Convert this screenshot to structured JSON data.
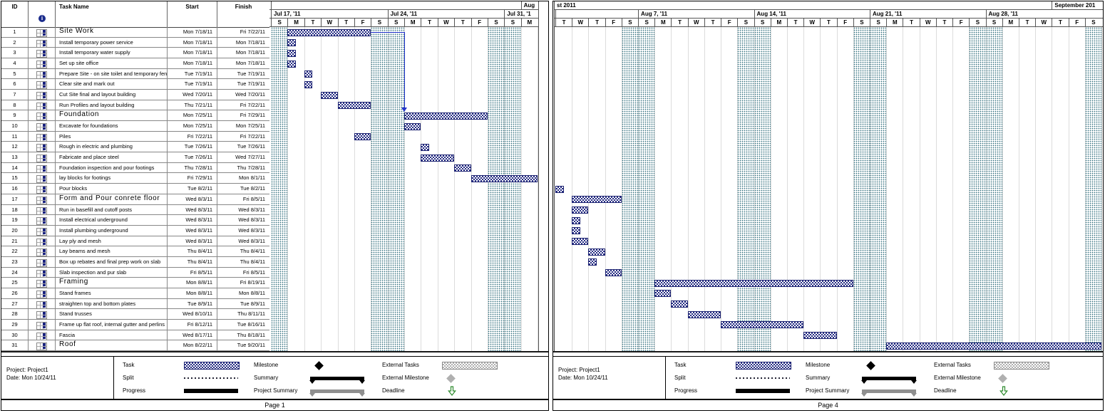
{
  "project": {
    "line1": "Project: Project1",
    "line2": "Date: Mon 10/24/11"
  },
  "table": {
    "headers": {
      "id": "ID",
      "task_name": "Task Name",
      "start": "Start",
      "finish": "Finish"
    }
  },
  "icons": {
    "info_glyph": "i",
    "task_mode_icon": "mini-gantt-table"
  },
  "tasks": [
    {
      "id": 1,
      "name": "Site Work",
      "start": "Mon 7/18/11",
      "finish": "Fri 7/22/11",
      "summary": true,
      "bar": {
        "page": 1,
        "day": 1,
        "dur": 5
      }
    },
    {
      "id": 2,
      "name": "Install temporary power service",
      "start": "Mon 7/18/11",
      "finish": "Mon 7/18/11",
      "summary": false,
      "bar": {
        "page": 1,
        "day": 1,
        "dur": 0.5
      }
    },
    {
      "id": 3,
      "name": "Install temporary water supply",
      "start": "Mon 7/18/11",
      "finish": "Mon 7/18/11",
      "summary": false,
      "bar": {
        "page": 1,
        "day": 1,
        "dur": 0.5
      }
    },
    {
      "id": 4,
      "name": "Set up site office",
      "start": "Mon 7/18/11",
      "finish": "Mon 7/18/11",
      "summary": false,
      "bar": {
        "page": 1,
        "day": 1,
        "dur": 0.5
      }
    },
    {
      "id": 5,
      "name": "Prepare Site - on site toilet and temporary fenc",
      "start": "Tue 7/19/11",
      "finish": "Tue 7/19/11",
      "summary": false,
      "bar": {
        "page": 1,
        "day": 2,
        "dur": 0.5
      }
    },
    {
      "id": 6,
      "name": "Clear site and mark out",
      "start": "Tue 7/19/11",
      "finish": "Tue 7/19/11",
      "summary": false,
      "bar": {
        "page": 1,
        "day": 2,
        "dur": 0.5
      }
    },
    {
      "id": 7,
      "name": "Cut Site final and layout building",
      "start": "Wed 7/20/11",
      "finish": "Wed 7/20/11",
      "summary": false,
      "bar": {
        "page": 1,
        "day": 3,
        "dur": 1
      }
    },
    {
      "id": 8,
      "name": "Run Profiles and layout building",
      "start": "Thu 7/21/11",
      "finish": "Fri 7/22/11",
      "summary": false,
      "bar": {
        "page": 1,
        "day": 4,
        "dur": 2
      }
    },
    {
      "id": 9,
      "name": "Foundation",
      "start": "Mon 7/25/11",
      "finish": "Fri 7/29/11",
      "summary": true,
      "bar": {
        "page": 1,
        "day": 8,
        "dur": 5
      }
    },
    {
      "id": 10,
      "name": "Excavate for foundations",
      "start": "Mon 7/25/11",
      "finish": "Mon 7/25/11",
      "summary": false,
      "bar": {
        "page": 1,
        "day": 8,
        "dur": 1
      }
    },
    {
      "id": 11,
      "name": "Piles",
      "start": "Fri 7/22/11",
      "finish": "Fri 7/22/11",
      "summary": false,
      "bar": {
        "page": 1,
        "day": 5,
        "dur": 1
      }
    },
    {
      "id": 12,
      "name": "Rough in electric and plumbing",
      "start": "Tue 7/26/11",
      "finish": "Tue 7/26/11",
      "summary": false,
      "bar": {
        "page": 1,
        "day": 9,
        "dur": 0.5
      }
    },
    {
      "id": 13,
      "name": "Fabricate and place steel",
      "start": "Tue 7/26/11",
      "finish": "Wed 7/27/11",
      "summary": false,
      "bar": {
        "page": 1,
        "day": 9,
        "dur": 2
      }
    },
    {
      "id": 14,
      "name": "Foundation inspection and pour footings",
      "start": "Thu 7/28/11",
      "finish": "Thu 7/28/11",
      "summary": false,
      "bar": {
        "page": 1,
        "day": 11,
        "dur": 1
      }
    },
    {
      "id": 15,
      "name": "lay blocks for footings",
      "start": "Fri 7/29/11",
      "finish": "Mon 8/1/11",
      "summary": false,
      "bar": {
        "page": 1,
        "day": 12,
        "dur": 4
      }
    },
    {
      "id": 16,
      "name": "Pour blocks",
      "start": "Tue 8/2/11",
      "finish": "Tue 8/2/11",
      "summary": false,
      "bar": {
        "page": 4,
        "day": 0,
        "dur": 0.5
      }
    },
    {
      "id": 17,
      "name": "Form and Pour conrete floor",
      "start": "Wed 8/3/11",
      "finish": "Fri 8/5/11",
      "summary": true,
      "bar": {
        "page": 4,
        "day": 1,
        "dur": 3
      }
    },
    {
      "id": 18,
      "name": "Run in basefill and cutoff posts",
      "start": "Wed 8/3/11",
      "finish": "Wed 8/3/11",
      "summary": false,
      "bar": {
        "page": 4,
        "day": 1,
        "dur": 1
      }
    },
    {
      "id": 19,
      "name": "Install electrical underground",
      "start": "Wed 8/3/11",
      "finish": "Wed 8/3/11",
      "summary": false,
      "bar": {
        "page": 4,
        "day": 1,
        "dur": 0.5
      }
    },
    {
      "id": 20,
      "name": "Install plumbing underground",
      "start": "Wed 8/3/11",
      "finish": "Wed 8/3/11",
      "summary": false,
      "bar": {
        "page": 4,
        "day": 1,
        "dur": 0.5
      }
    },
    {
      "id": 21,
      "name": "Lay ply and mesh",
      "start": "Wed 8/3/11",
      "finish": "Wed 8/3/11",
      "summary": false,
      "bar": {
        "page": 4,
        "day": 1,
        "dur": 1
      }
    },
    {
      "id": 22,
      "name": "Lay beams and mesh",
      "start": "Thu 8/4/11",
      "finish": "Thu 8/4/11",
      "summary": false,
      "bar": {
        "page": 4,
        "day": 2,
        "dur": 1
      }
    },
    {
      "id": 23,
      "name": "Box up rebates and final prep work on slab",
      "start": "Thu 8/4/11",
      "finish": "Thu 8/4/11",
      "summary": false,
      "bar": {
        "page": 4,
        "day": 2,
        "dur": 0.5
      }
    },
    {
      "id": 24,
      "name": "Slab inspection and pur slab",
      "start": "Fri 8/5/11",
      "finish": "Fri 8/5/11",
      "summary": false,
      "bar": {
        "page": 4,
        "day": 3,
        "dur": 1
      }
    },
    {
      "id": 25,
      "name": "Framing",
      "start": "Mon 8/8/11",
      "finish": "Fri 8/19/11",
      "summary": true,
      "bar": {
        "page": 4,
        "day": 6,
        "dur": 12
      }
    },
    {
      "id": 26,
      "name": "Stand frames",
      "start": "Mon 8/8/11",
      "finish": "Mon 8/8/11",
      "summary": false,
      "bar": {
        "page": 4,
        "day": 6,
        "dur": 1
      }
    },
    {
      "id": 27,
      "name": "straighten top and bottom plates",
      "start": "Tue 8/9/11",
      "finish": "Tue 8/9/11",
      "summary": false,
      "bar": {
        "page": 4,
        "day": 7,
        "dur": 1
      }
    },
    {
      "id": 28,
      "name": "Stand trusses",
      "start": "Wed 8/10/11",
      "finish": "Thu 8/11/11",
      "summary": false,
      "bar": {
        "page": 4,
        "day": 8,
        "dur": 2
      }
    },
    {
      "id": 29,
      "name": "Frame up flat roof, internal gutter and perlins",
      "start": "Fri 8/12/11",
      "finish": "Tue 8/16/11",
      "summary": false,
      "bar": {
        "page": 4,
        "day": 10,
        "dur": 5
      }
    },
    {
      "id": 30,
      "name": "Fascia",
      "start": "Wed 8/17/11",
      "finish": "Thu 8/18/11",
      "summary": false,
      "bar": {
        "page": 4,
        "day": 15,
        "dur": 2
      }
    },
    {
      "id": 31,
      "name": "Roof",
      "start": "Mon 8/22/11",
      "finish": "Tue 9/20/11",
      "summary": true,
      "bar": {
        "page": 4,
        "day": 20,
        "dur": 13
      }
    }
  ],
  "pages": [
    {
      "page_label": "Page 1",
      "page_no": 1,
      "chart": {
        "months": [
          {
            "label": "",
            "from": 0,
            "to": 15
          },
          {
            "label": "Aug",
            "from": 15,
            "to": 16
          }
        ],
        "weeks": [
          {
            "label": "Jul 17, '11",
            "from": 0,
            "to": 7
          },
          {
            "label": "Jul 24, '11",
            "from": 7,
            "to": 14
          },
          {
            "label": "Jul 31, '1",
            "from": 14,
            "to": 16
          }
        ],
        "days": [
          "S",
          "M",
          "T",
          "W",
          "T",
          "F",
          "S",
          "S",
          "M",
          "T",
          "W",
          "T",
          "F",
          "S",
          "S",
          "M"
        ],
        "weekend_days": [
          0,
          6,
          7,
          13,
          14
        ]
      },
      "link_line": {
        "from_task": 1,
        "to_task": 9,
        "from_day": 6,
        "corner_day": 8,
        "from_row": 0,
        "to_row": 8
      }
    },
    {
      "page_label": "Page 4",
      "page_no": 4,
      "chart": {
        "months": [
          {
            "label": "st 2011",
            "from": -10,
            "to": 30
          },
          {
            "label": "September 201",
            "from": 30,
            "to": 34
          }
        ],
        "weeks": [
          {
            "label": "",
            "from": 0,
            "to": 5
          },
          {
            "label": "Aug 7, '11",
            "from": 5,
            "to": 12
          },
          {
            "label": "Aug 14, '11",
            "from": 12,
            "to": 19
          },
          {
            "label": "Aug 21, '11",
            "from": 19,
            "to": 26
          },
          {
            "label": "Aug 28, '11",
            "from": 26,
            "to": 33
          }
        ],
        "days": [
          "T",
          "W",
          "T",
          "F",
          "S",
          "S",
          "M",
          "T",
          "W",
          "T",
          "F",
          "S",
          "S",
          "M",
          "T",
          "W",
          "T",
          "F",
          "S",
          "S",
          "M",
          "T",
          "W",
          "T",
          "F",
          "S",
          "S",
          "M",
          "T",
          "W",
          "T",
          "F",
          "S"
        ],
        "weekend_days": [
          4,
          5,
          11,
          12,
          18,
          19,
          25,
          26,
          32
        ]
      },
      "link_line": null
    }
  ],
  "legend": {
    "columns": [
      [
        {
          "label": "Task",
          "swatch": "task"
        },
        {
          "label": "Split",
          "swatch": "split"
        },
        {
          "label": "Progress",
          "swatch": "progress"
        }
      ],
      [
        {
          "label": "Milestone",
          "swatch": "milestone"
        },
        {
          "label": "Summary",
          "swatch": "summary"
        },
        {
          "label": "Project Summary",
          "swatch": "project-summary"
        }
      ],
      [
        {
          "label": "External Tasks",
          "swatch": "external-tasks"
        },
        {
          "label": "External Milestone",
          "swatch": "external-milestone"
        },
        {
          "label": "Deadline",
          "swatch": "deadline"
        }
      ]
    ]
  },
  "colors": {
    "bar_fill": "#272e84",
    "bar_border": "#1b2170",
    "weekend_dot": "#2f6e7d",
    "external_fill": "#b0b0b0",
    "summary_gray": "#8f8f8f",
    "link_line": "#2233cc",
    "deadline_green": "#2e8b2e"
  }
}
